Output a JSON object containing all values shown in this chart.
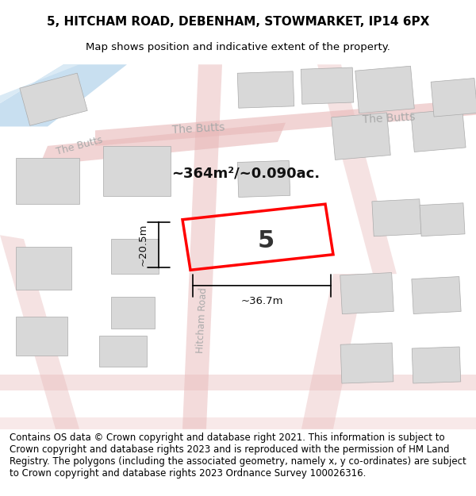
{
  "title_line1": "5, HITCHAM ROAD, DEBENHAM, STOWMARKET, IP14 6PX",
  "title_line2": "Map shows position and indicative extent of the property.",
  "footer_text": "Contains OS data © Crown copyright and database right 2021. This information is subject to Crown copyright and database rights 2023 and is reproduced with the permission of HM Land Registry. The polygons (including the associated geometry, namely x, y co-ordinates) are subject to Crown copyright and database rights 2023 Ordnance Survey 100026316.",
  "area_label": "~364m²/~0.090ac.",
  "number_label": "5",
  "width_label": "~36.7m",
  "height_label": "~20.5m",
  "bg_color": "#f5f5f5",
  "map_bg": "#f0eeee",
  "road_color": "#e8b8b8",
  "road_light": "#f5d5d5",
  "building_color": "#d8d8d8",
  "water_color": "#c8dff0",
  "plot_color": "#ff0000",
  "street_label_color": "#aaaaaa",
  "title_fontsize": 11,
  "footer_fontsize": 8.5
}
